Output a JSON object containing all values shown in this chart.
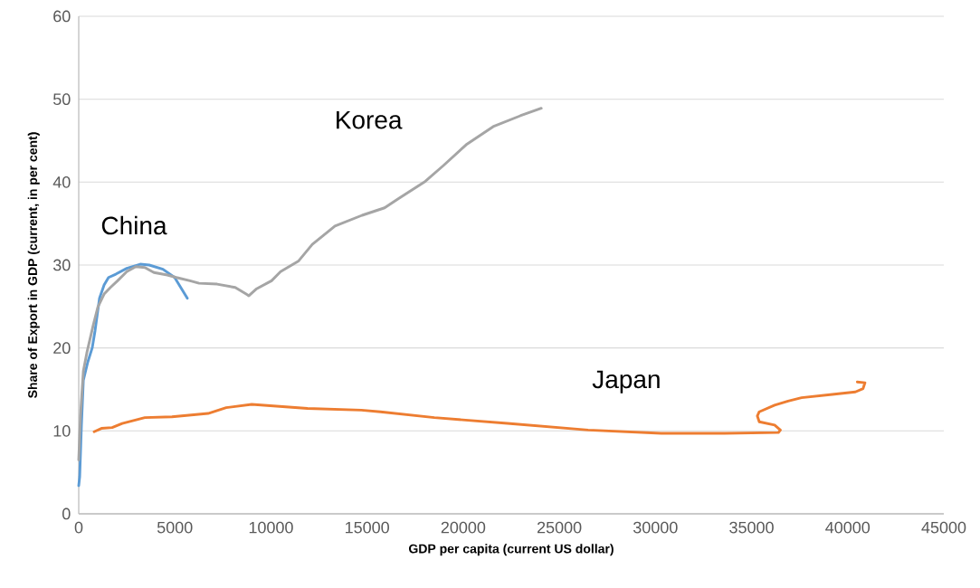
{
  "chart_data": {
    "type": "line",
    "xlabel": "GDP per capita (current US dollar)",
    "ylabel": "Share of Export in GDP (current, in per cent)",
    "xlim": [
      0,
      45000
    ],
    "ylim": [
      0,
      60
    ],
    "xticks": [
      0,
      5000,
      10000,
      15000,
      20000,
      25000,
      30000,
      35000,
      40000,
      45000
    ],
    "yticks": [
      0,
      10,
      20,
      30,
      40,
      50,
      60
    ],
    "grid": "y",
    "series": [
      {
        "name": "China",
        "color": "#5b9bd5",
        "x": [
          0,
          50,
          140,
          240,
          470,
          700,
          850,
          1080,
          1320,
          1550,
          1930,
          2500,
          3200,
          3670,
          4380,
          4990,
          5650
        ],
        "values": [
          3.4,
          4.5,
          10.7,
          16.1,
          18.3,
          20,
          22.1,
          26,
          27.6,
          28.5,
          28.9,
          29.6,
          30.1,
          30.0,
          29.5,
          28.5,
          26.0
        ]
      },
      {
        "name": "Korea",
        "color": "#a5a5a5",
        "x": [
          0,
          90,
          240,
          420,
          750,
          990,
          1320,
          1650,
          2020,
          2500,
          2970,
          3440,
          3910,
          4610,
          5080,
          5790,
          6260,
          7200,
          8140,
          8710,
          8850,
          9230,
          10030,
          10500,
          11440,
          12150,
          13330,
          14740,
          15910,
          16620,
          18030,
          18970,
          20150,
          21560,
          22970,
          24060
        ],
        "values": [
          6.5,
          11.8,
          17.2,
          19.4,
          22.7,
          24.9,
          26.5,
          27.3,
          28.1,
          29.2,
          29.8,
          29.7,
          29.1,
          28.8,
          28.5,
          28.1,
          27.8,
          27.7,
          27.3,
          26.5,
          26.3,
          27.1,
          28.1,
          29.2,
          30.5,
          32.5,
          34.7,
          36.0,
          36.9,
          38.0,
          40.1,
          42.0,
          44.5,
          46.7,
          48.0,
          48.9
        ]
      },
      {
        "name": "Japan",
        "color": "#ed7d31",
        "x": [
          800,
          1180,
          1740,
          2260,
          3440,
          4850,
          6730,
          7670,
          9000,
          11900,
          14700,
          15700,
          18500,
          22300,
          26500,
          30300,
          33600,
          36400,
          36500,
          36200,
          35400,
          35300,
          35400,
          36200,
          36900,
          37600,
          39200,
          40400,
          40800,
          40900,
          40500
        ],
        "values": [
          9.9,
          10.3,
          10.4,
          10.9,
          11.6,
          11.7,
          12.1,
          12.8,
          13.2,
          12.7,
          12.5,
          12.3,
          11.6,
          10.9,
          10.1,
          9.7,
          9.7,
          9.8,
          10.1,
          10.7,
          11.1,
          11.8,
          12.3,
          13.1,
          13.6,
          14.0,
          14.4,
          14.7,
          15.1,
          15.8,
          15.9
        ]
      }
    ]
  }
}
